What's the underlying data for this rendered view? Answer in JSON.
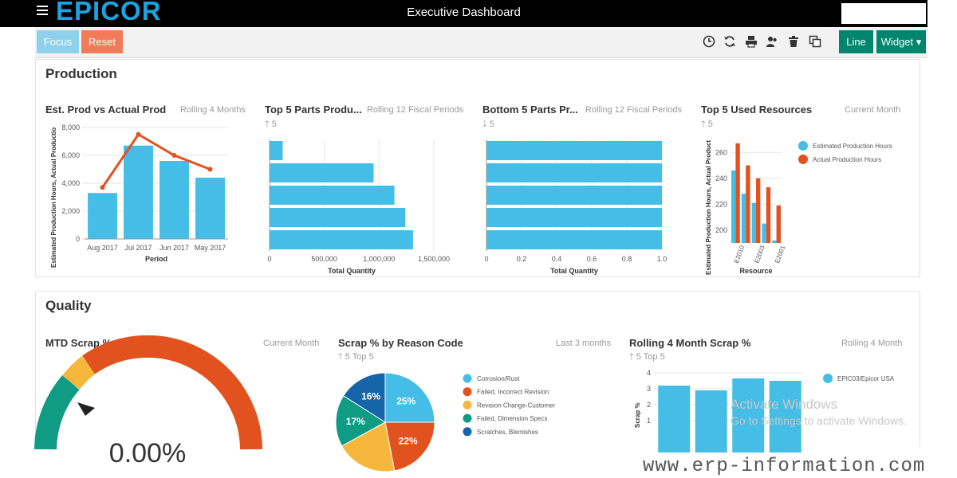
{
  "app": {
    "logo": "EPICOR",
    "title": "Executive Dashboard"
  },
  "toolbar": {
    "focus_label": "Focus",
    "reset_label": "Reset",
    "line_label": "Line",
    "widget_label": "Widget ▾",
    "icons": [
      "clock-icon",
      "refresh-icon",
      "print-icon",
      "users-icon",
      "trash-icon",
      "copy-icon"
    ]
  },
  "production": {
    "title": "Production",
    "est_vs_actual": {
      "title": "Est. Prod vs Actual Prod",
      "period": "Rolling 4 Months"
    },
    "top5_parts": {
      "title": "Top 5 Parts Produ...",
      "period": "Rolling 12 Fiscal Periods",
      "sub": "5"
    },
    "bottom5_parts": {
      "title": "Bottom 5 Parts Pr...",
      "period": "Rolling 12 Fiscal Periods",
      "sub": "5"
    },
    "top5_resources": {
      "title": "Top 5 Used Resources",
      "period": "Current Month",
      "sub": "5"
    }
  },
  "quality": {
    "title": "Quality",
    "mtd_scrap": {
      "title": "MTD Scrap %",
      "period": "Current Month",
      "value": "0.00%"
    },
    "scrap_reason": {
      "title": "Scrap % by Reason Code",
      "period": "Last 3 months",
      "sub": "5   Top 5"
    },
    "rolling_scrap": {
      "title": "Rolling 4 Month Scrap %",
      "period": "Rolling 4 Month",
      "sub": "5   Top 5"
    }
  },
  "chart_data": [
    {
      "type": "bar",
      "title": "Est. Prod vs Actual Prod",
      "categories": [
        "Aug 2017",
        "Jul 2017",
        "Jun 2017",
        "May 2017"
      ],
      "series": [
        {
          "values": [
            3300,
            6700,
            5600,
            4400
          ]
        },
        {
          "values": [
            3700,
            7500,
            6000,
            5000
          ]
        }
      ],
      "xlabel": "Period",
      "ylabel": "Estimated Production Hours, Actual Productio",
      "ylim": [
        0,
        8000
      ],
      "yticks": [
        "8,000",
        "6,000",
        "4,000",
        "2,000",
        "0"
      ],
      "colors": [
        "#45bde6",
        "#e1521e"
      ]
    },
    {
      "type": "bar",
      "title": "Top 5 Parts Produ...",
      "orientation": "horizontal",
      "values": [
        120000,
        950000,
        1140000,
        1240000,
        1310000
      ],
      "xlabel": "Total Quantity",
      "xlim": [
        0,
        1500000
      ],
      "xticks": [
        "0",
        "500,000",
        "1,000,000",
        "1,500,000"
      ],
      "colors": [
        "#45bde6"
      ]
    },
    {
      "type": "bar",
      "title": "Bottom 5 Parts Pr...",
      "orientation": "horizontal",
      "values": [
        1.0,
        1.0,
        1.0,
        1.0,
        1.0
      ],
      "xlabel": "Total Quantity",
      "xlim": [
        0,
        1
      ],
      "xticks": [
        "0",
        "0.2",
        "0.4",
        "0.6",
        "0.8",
        "1.0"
      ],
      "colors": [
        "#45bde6"
      ]
    },
    {
      "type": "bar",
      "title": "Top 5 Used Resources",
      "categories": [
        "E2010",
        "",
        "E2003",
        "",
        "E2001"
      ],
      "series": [
        {
          "name": "Estimated Production Hours",
          "values": [
            246,
            228,
            221,
            205,
            192
          ]
        },
        {
          "name": "Actual Production Hours",
          "values": [
            267,
            250,
            240,
            233,
            219
          ]
        }
      ],
      "xlabel": "Resource",
      "ylabel": "Estimated Production Hours, Actual Product",
      "ylim": [
        190,
        270
      ],
      "yticks": [
        "260",
        "240",
        "220",
        "200"
      ],
      "colors": [
        "#45bde6",
        "#e1521e"
      ],
      "legend": "top-right"
    },
    {
      "type": "pie",
      "title": "Scrap % by Reason Code",
      "series": [
        {
          "name": "Corrosion/Rust",
          "value": 25,
          "label": "25%"
        },
        {
          "name": "Failed, Incorrect Revision",
          "value": 22,
          "label": "22%"
        },
        {
          "name": "Revision Change-Customer",
          "value": 20,
          "label": ""
        },
        {
          "name": "Failed, Dimension Specs",
          "value": 17,
          "label": "17%"
        },
        {
          "name": "Scratches, Blemishes",
          "value": 16,
          "label": "16%"
        }
      ],
      "colors": [
        "#45bde6",
        "#e1521e",
        "#f6b73c",
        "#0f9b84",
        "#1565a8"
      ],
      "legend": "right"
    },
    {
      "type": "bar",
      "title": "Rolling 4 Month Scrap %",
      "categories": [
        "",
        "",
        "",
        ""
      ],
      "series": [
        {
          "name": "EPIC03/Epicor USA",
          "values": [
            3.2,
            2.9,
            3.65,
            3.5
          ]
        }
      ],
      "ylabel": "Scrap %",
      "ylim": [
        0,
        4
      ],
      "yticks": [
        "4",
        "3",
        "2",
        "1"
      ],
      "colors": [
        "#45bde6"
      ],
      "legend": "top-right"
    }
  ],
  "overlay": {
    "watermark": "www.erp-information.com",
    "windows_line1": "Activate Windows",
    "windows_line2": "Go to Settings to activate Windows."
  }
}
